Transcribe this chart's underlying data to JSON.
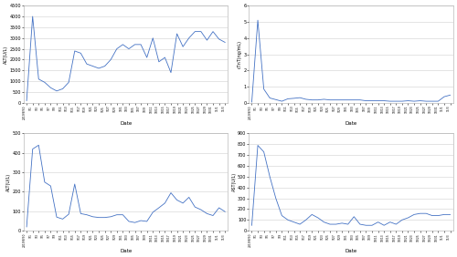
{
  "alt_values": [
    100,
    4000,
    1100,
    950,
    700,
    550,
    650,
    950,
    2400,
    2300,
    1800,
    1700,
    1600,
    1700,
    2000,
    2500,
    2700,
    2500,
    2700,
    2700,
    2100,
    3000,
    1900,
    2100,
    1400,
    3200,
    2600,
    3000,
    3300,
    3300,
    2900,
    3300,
    2950,
    2800
  ],
  "ast_values": [
    0.05,
    5.1,
    0.85,
    0.3,
    0.2,
    0.1,
    0.25,
    0.28,
    0.32,
    0.22,
    0.18,
    0.18,
    0.22,
    0.18,
    0.18,
    0.18,
    0.18,
    0.18,
    0.18,
    0.13,
    0.13,
    0.13,
    0.13,
    0.1,
    0.1,
    0.1,
    0.13,
    0.1,
    0.13,
    0.1,
    0.1,
    0.1,
    0.38,
    0.48
  ],
  "myo_values": [
    20,
    420,
    440,
    250,
    230,
    70,
    60,
    85,
    240,
    88,
    82,
    72,
    68,
    68,
    72,
    82,
    82,
    48,
    42,
    52,
    48,
    95,
    118,
    142,
    195,
    158,
    142,
    172,
    122,
    108,
    88,
    78,
    118,
    98
  ],
  "ctnt_values": [
    50,
    790,
    730,
    500,
    300,
    140,
    100,
    80,
    60,
    100,
    150,
    120,
    80,
    60,
    60,
    70,
    60,
    130,
    60,
    50,
    50,
    80,
    50,
    80,
    60,
    100,
    120,
    150,
    160,
    160,
    140,
    140,
    150,
    150
  ],
  "dates": [
    "2019/8/30",
    "9/1",
    "9/3",
    "9/5",
    "9/7",
    "9/9",
    "9/11",
    "9/13",
    "9/15",
    "9/17",
    "9/19",
    "9/21",
    "9/23",
    "9/25",
    "9/27",
    "9/29",
    "10/1",
    "10/3",
    "10/5",
    "10/7",
    "10/9",
    "10/11",
    "10/13",
    "10/15",
    "10/17",
    "10/19",
    "10/21",
    "10/23",
    "10/25",
    "10/27",
    "10/29",
    "10/31",
    "11/1",
    "11/3"
  ],
  "alt_ylabel": "ALT(U/L)",
  "ast_ylabel": "cTnT(ng/mL)",
  "myo_ylabel": "ALT(U/L)",
  "ctnt_ylabel": "AST(U/L)",
  "xlabel": "Date",
  "line_color": "#4472C4",
  "background_color": "#FFFFFF",
  "plot_bg_color": "#FFFFFF",
  "grid_color": "#D9D9D9",
  "alt_ylim": [
    0,
    4500
  ],
  "alt_yticks": [
    0,
    500,
    1000,
    1500,
    2000,
    2500,
    3000,
    3500,
    4000,
    4500
  ],
  "ast_ylim": [
    0,
    6
  ],
  "ast_yticks": [
    0,
    1,
    2,
    3,
    4,
    5,
    6
  ],
  "myo_ylim": [
    0,
    500
  ],
  "myo_yticks": [
    0,
    100,
    200,
    300,
    400,
    500
  ],
  "ctnt_ylim": [
    0,
    900
  ],
  "ctnt_yticks": [
    0,
    100,
    200,
    300,
    400,
    500,
    600,
    700,
    800,
    900
  ]
}
